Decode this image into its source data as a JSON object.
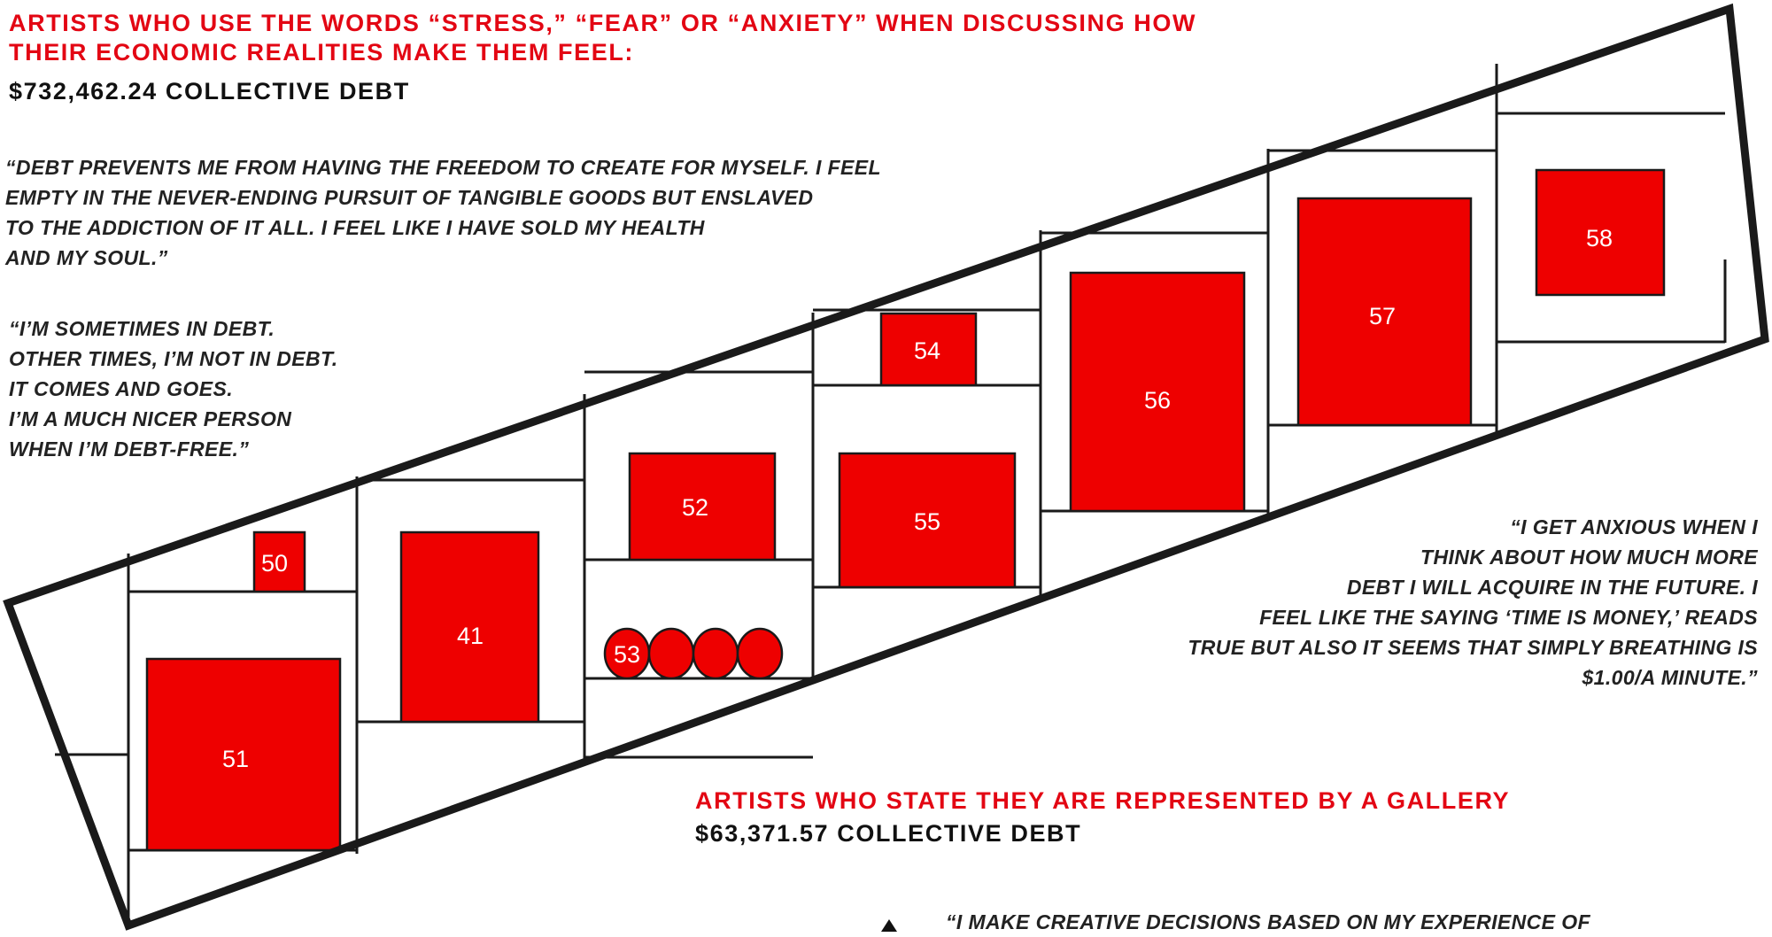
{
  "sections": [
    {
      "title_lines": [
        "ARTISTS WHO USE THE WORDS “STRESS,” “FEAR” OR “ANXIETY” WHEN DISCUSSING HOW",
        "THEIR ECONOMIC REALITIES MAKE THEM FEEL:"
      ],
      "debt": "$732,462.24 COLLECTIVE DEBT"
    },
    {
      "title_lines": [
        "ARTISTS WHO STATE THEY ARE REPRESENTED BY A GALLERY"
      ],
      "debt": "$63,371.57 COLLECTIVE DEBT"
    }
  ],
  "quotes": [
    {
      "lines": [
        "“DEBT PREVENTS ME FROM HAVING THE FREEDOM TO CREATE FOR MYSELF. I FEEL",
        "EMPTY IN THE NEVER-ENDING PURSUIT OF TANGIBLE GOODS BUT ENSLAVED",
        "TO THE ADDICTION OF IT ALL. I FEEL LIKE I HAVE SOLD MY HEALTH",
        "AND MY SOUL.”"
      ]
    },
    {
      "lines": [
        "“I’M SOMETIMES IN DEBT.",
        "OTHER TIMES, I’M NOT IN DEBT.",
        "IT COMES AND GOES.",
        "I’M A MUCH NICER PERSON",
        "WHEN I’M DEBT-FREE.”"
      ]
    },
    {
      "lines": [
        "“I GET ANXIOUS WHEN I",
        "THINK ABOUT HOW MUCH MORE",
        "DEBT I WILL ACQUIRE IN THE FUTURE. I",
        "FEEL LIKE THE SAYING ‘TIME IS MONEY,’ READS",
        "TRUE BUT ALSO IT SEEMS THAT SIMPLY BREATHING IS",
        "$1.00/A MINUTE.”"
      ]
    },
    {
      "lines": [
        "“I MAKE CREATIVE DECISIONS BASED ON MY EXPERIENCE OF"
      ]
    }
  ],
  "packages": [
    {
      "id": "51",
      "label": "51"
    },
    {
      "id": "50",
      "label": "50"
    },
    {
      "id": "41",
      "label": "41"
    },
    {
      "id": "52",
      "label": "52"
    },
    {
      "id": "53",
      "label": "53"
    },
    {
      "id": "54",
      "label": "54"
    },
    {
      "id": "55",
      "label": "55"
    },
    {
      "id": "56",
      "label": "56"
    },
    {
      "id": "57",
      "label": "57"
    },
    {
      "id": "58",
      "label": "58"
    }
  ],
  "colors": {
    "accent_red": "#e30613",
    "package_red": "#ee0000",
    "frame": "#1a1a1a",
    "text": "#222222"
  }
}
